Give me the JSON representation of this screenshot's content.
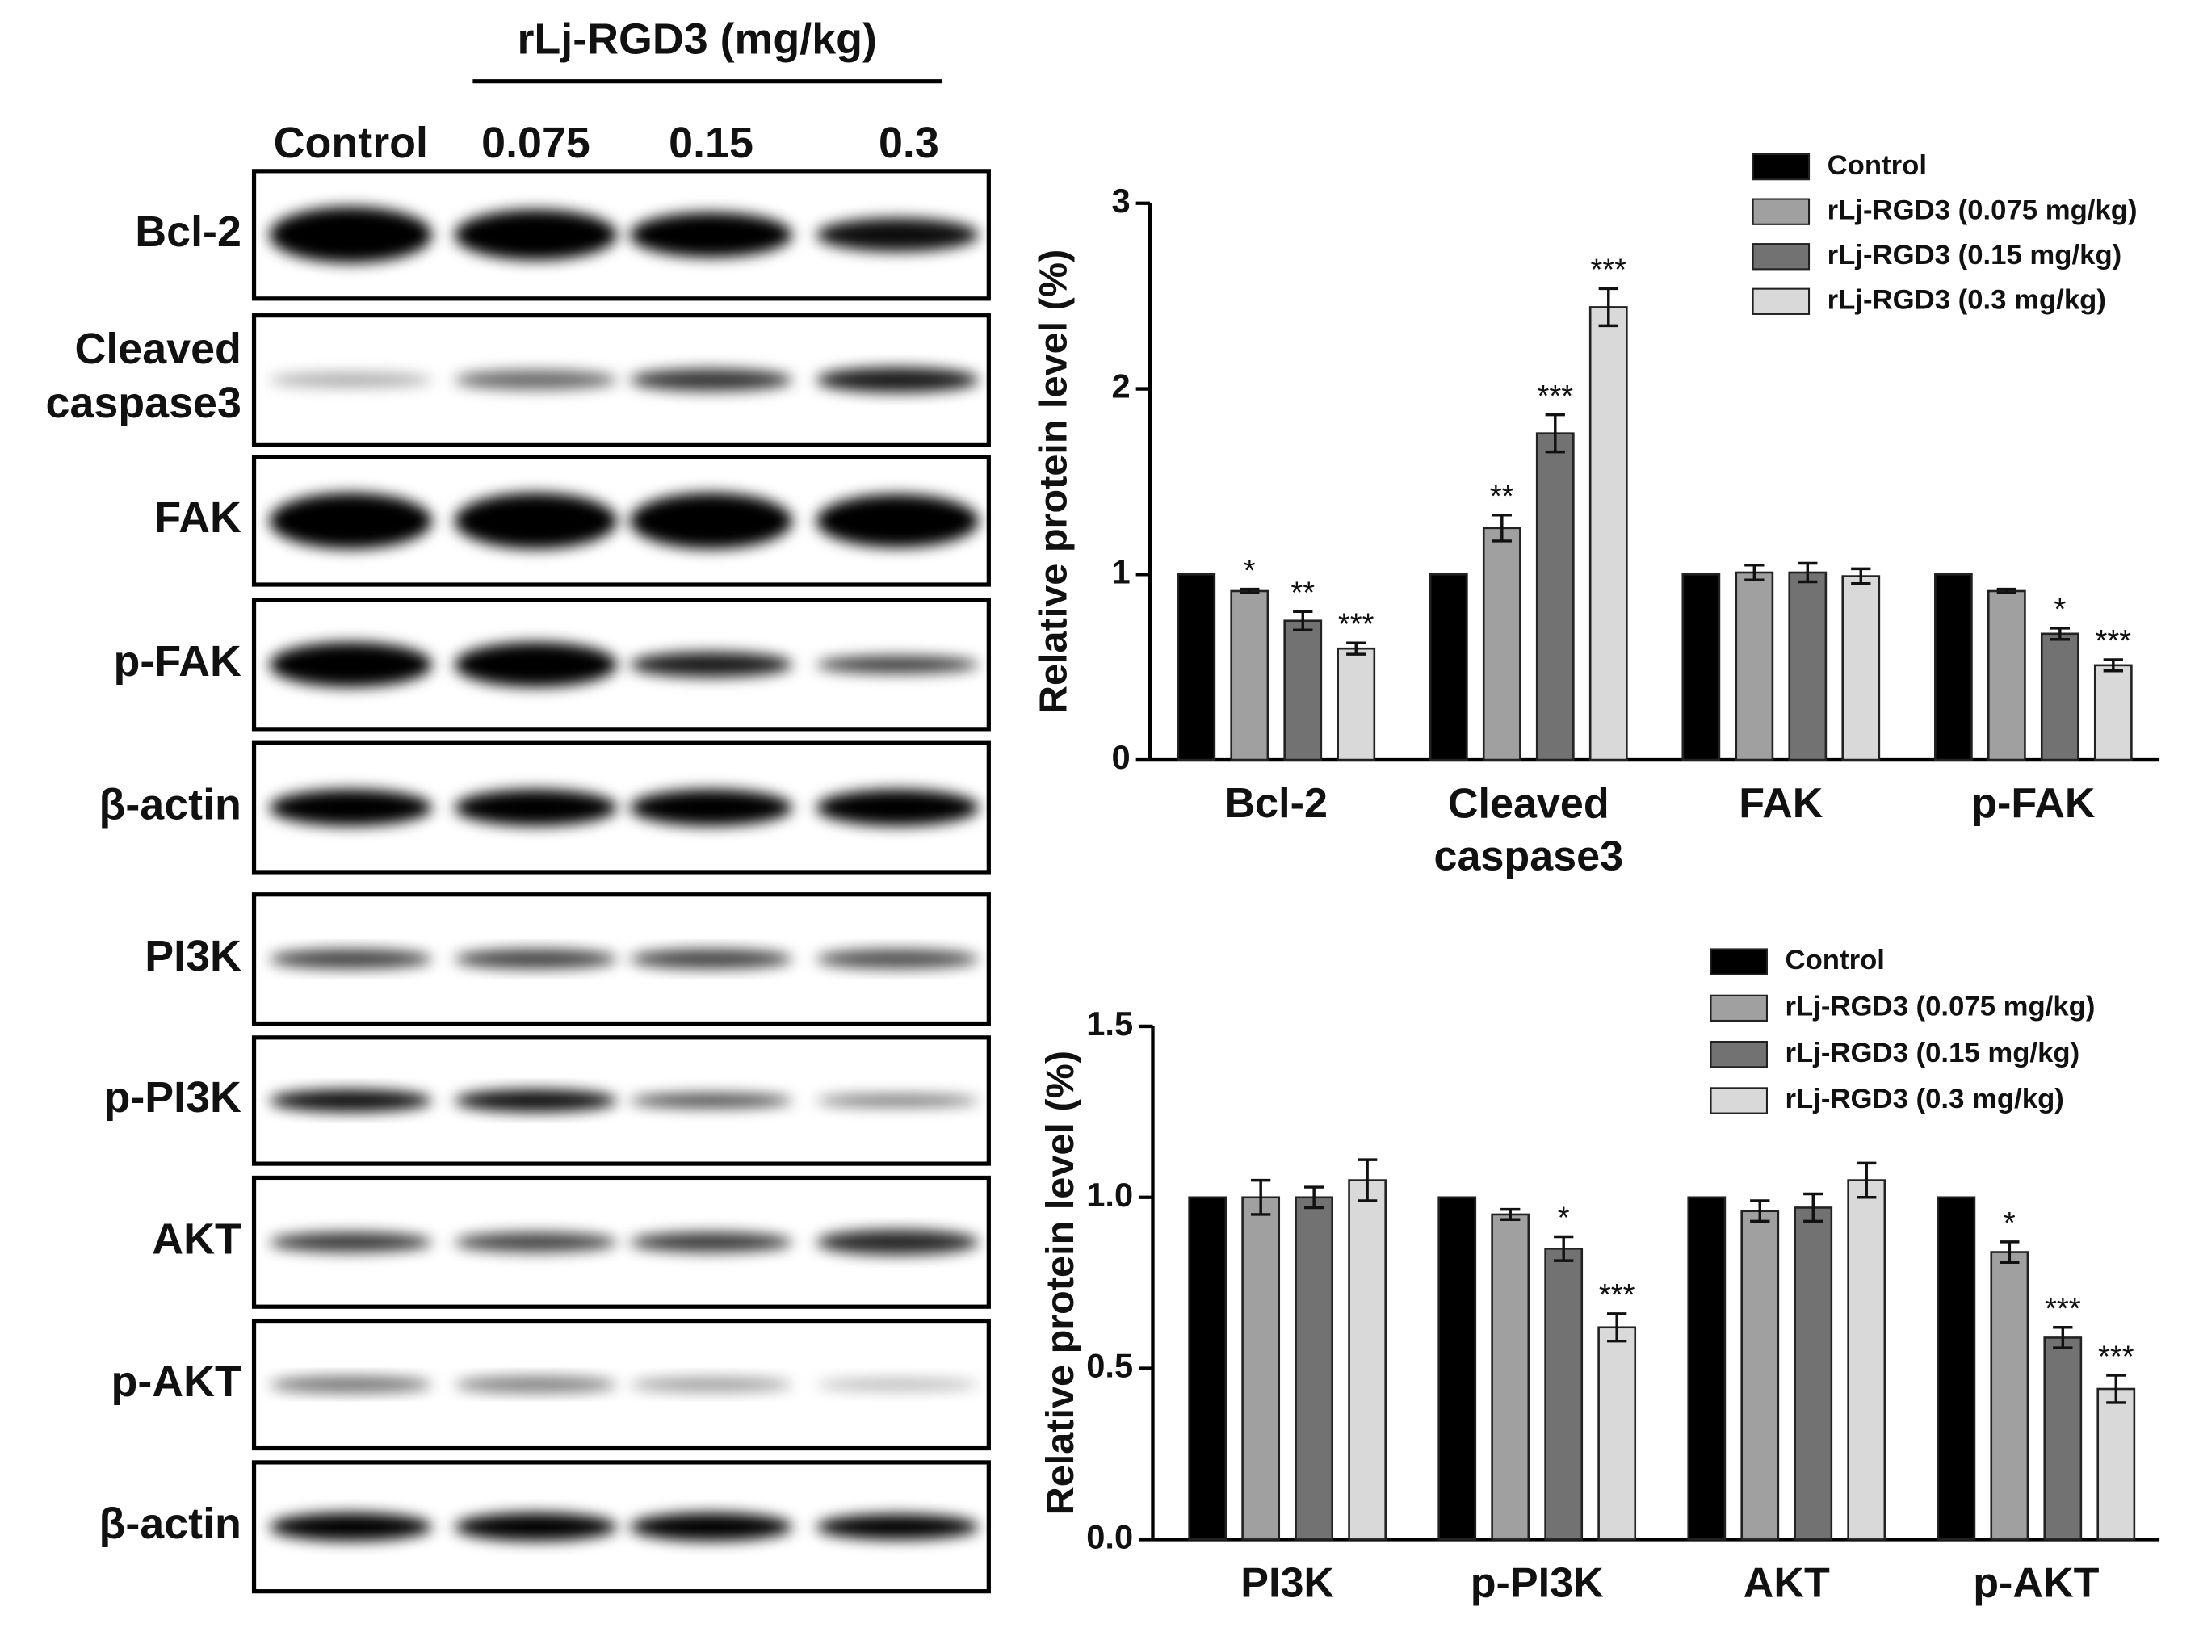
{
  "blot": {
    "header": "rLj-RGD3 (mg/kg)",
    "lanes": [
      "Control",
      "0.075",
      "0.15",
      "0.3"
    ],
    "rows": [
      "Bcl-2",
      "Cleaved caspase3",
      "FAK",
      "p-FAK",
      "β-actin",
      "PI3K",
      "p-PI3K",
      "AKT",
      "p-AKT",
      "β-actin"
    ]
  },
  "chart_data": [
    {
      "type": "bar",
      "y_label": "Relative protein level (%)",
      "categories": [
        "Bcl-2",
        "Cleaved caspase3",
        "FAK",
        "p-FAK"
      ],
      "ylim": [
        0,
        3
      ],
      "yticks": [
        0,
        1,
        2,
        3
      ],
      "grid": false,
      "legend": "upper right",
      "series": [
        {
          "name": "Control",
          "color": "#000000",
          "values": [
            1,
            1,
            1,
            1
          ]
        },
        {
          "name": "rLj-RGD3 (0.075 mg/kg)",
          "color": "#a0a0a0",
          "values": [
            0.91,
            1.25,
            1.01,
            0.91
          ],
          "errors": [
            0.01,
            0.07,
            0.04,
            0.01
          ],
          "significance": [
            "*",
            "**",
            null,
            null
          ]
        },
        {
          "name": "rLj-RGD3 (0.15 mg/kg)",
          "color": "#727272",
          "values": [
            0.75,
            1.76,
            1.01,
            0.68
          ],
          "errors": [
            0.05,
            0.1,
            0.05,
            0.03
          ],
          "significance": [
            "**",
            "***",
            null,
            "*"
          ]
        },
        {
          "name": "rLj-RGD3 (0.3 mg/kg)",
          "color": "#d9d9d9",
          "values": [
            0.6,
            2.44,
            0.99,
            0.51
          ],
          "errors": [
            0.03,
            0.1,
            0.04,
            0.03
          ],
          "significance": [
            "***",
            "***",
            null,
            "***"
          ]
        }
      ]
    },
    {
      "type": "bar",
      "y_label": "Relative protein level (%)",
      "categories": [
        "PI3K",
        "p-PI3K",
        "AKT",
        "p-AKT"
      ],
      "ylim": [
        0,
        1.5
      ],
      "yticks": [
        {
          "value": 0,
          "label": "0.0"
        },
        {
          "value": 0.5,
          "label": "0.5"
        },
        {
          "value": 1,
          "label": "1.0"
        },
        {
          "value": 1.5,
          "label": "1.5"
        }
      ],
      "grid": false,
      "legend": "upper right",
      "series": [
        {
          "name": "Control",
          "color": "#000000",
          "values": [
            1,
            1,
            1,
            1
          ]
        },
        {
          "name": "rLj-RGD3 (0.075 mg/kg)",
          "color": "#a0a0a0",
          "values": [
            1.0,
            0.95,
            0.96,
            0.84
          ],
          "errors": [
            0.05,
            0.015,
            0.03,
            0.03
          ],
          "significance": [
            null,
            null,
            null,
            "*"
          ]
        },
        {
          "name": "rLj-RGD3 (0.15 mg/kg)",
          "color": "#727272",
          "values": [
            1.0,
            0.85,
            0.97,
            0.59
          ],
          "errors": [
            0.03,
            0.035,
            0.04,
            0.03
          ],
          "significance": [
            null,
            "*",
            null,
            "***"
          ]
        },
        {
          "name": "rLj-RGD3 (0.3 mg/kg)",
          "color": "#d9d9d9",
          "values": [
            1.05,
            0.62,
            1.05,
            0.44
          ],
          "errors": [
            0.06,
            0.04,
            0.05,
            0.04
          ],
          "significance": [
            null,
            "***",
            null,
            "***"
          ]
        }
      ]
    }
  ]
}
